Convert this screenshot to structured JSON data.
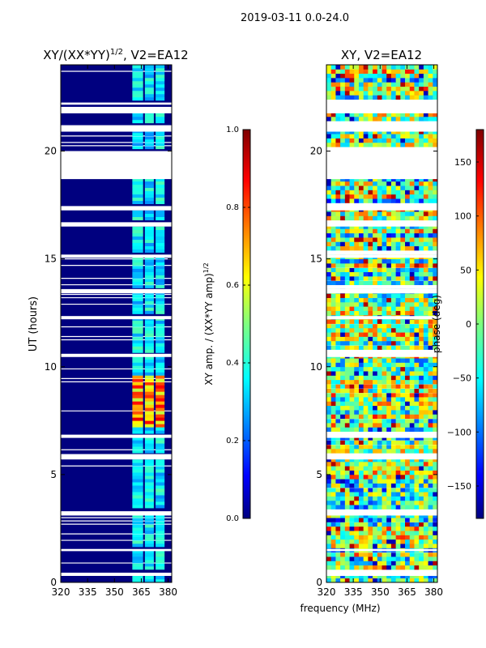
{
  "figure_title": "2019-03-11 0.0-24.0",
  "colors": {
    "dark_blue": "#00007f",
    "blue": "#0000ff",
    "cyan": "#00ffff",
    "yellow": "#ffff00",
    "red": "#ff0000",
    "dark_red": "#7f0000",
    "green": "#7fff7f"
  },
  "chart_data": [
    {
      "type": "heatmap",
      "title": "XY/(XX*YY)",
      "title_superscript": "1/2",
      "title_suffix": ", V2=EA12",
      "xlabel": "",
      "ylabel": "UT (hours)",
      "xlim": [
        320,
        382
      ],
      "ylim": [
        0,
        24
      ],
      "x_ticks": [
        320,
        335,
        350,
        365,
        380
      ],
      "y_ticks": [
        0,
        5,
        10,
        15,
        20
      ],
      "colorbar": {
        "label": "XY amp. / (XX*YY amp)",
        "label_superscript": "1/2",
        "range": [
          0.0,
          1.0
        ],
        "ticks": [
          "0.0",
          "0.2",
          "0.4",
          "0.6",
          "0.8",
          "1.0"
        ]
      },
      "bright_bands_mhz": [
        [
          360,
          366
        ],
        [
          367,
          372
        ],
        [
          373,
          378
        ]
      ],
      "high_amp_hours": [
        7.2,
        9.6
      ],
      "data_gaps_hours": [
        [
          0.3,
          0.45
        ],
        [
          1.45,
          1.55
        ],
        [
          3.1,
          3.3
        ],
        [
          5.7,
          5.95
        ],
        [
          6.7,
          6.85
        ],
        [
          10.45,
          10.6
        ],
        [
          12.2,
          12.35
        ],
        [
          13.4,
          13.6
        ],
        [
          15.05,
          15.2
        ],
        [
          16.5,
          16.7
        ],
        [
          17.25,
          17.45
        ],
        [
          18.7,
          20.0
        ],
        [
          20.9,
          21.2
        ],
        [
          21.75,
          22.05
        ],
        [
          22.15,
          22.25
        ]
      ]
    },
    {
      "type": "heatmap",
      "title": "XY, V2=EA12",
      "xlabel": "frequency (MHz)",
      "ylabel": "",
      "xlim": [
        320,
        382
      ],
      "ylim": [
        0,
        24
      ],
      "x_ticks": [
        320,
        335,
        350,
        365,
        380
      ],
      "y_ticks": [
        0,
        5,
        10,
        15,
        20
      ],
      "colorbar": {
        "label": "phase (deg)",
        "range": [
          -180,
          180
        ],
        "ticks": [
          "150",
          "100",
          "50",
          "0",
          "−50",
          "−100",
          "−150"
        ],
        "tick_values": [
          150,
          100,
          50,
          0,
          -50,
          -100,
          -150
        ]
      },
      "data_gaps_hours": [
        [
          0.3,
          0.45
        ],
        [
          1.45,
          1.55
        ],
        [
          3.1,
          3.3
        ],
        [
          5.7,
          5.95
        ],
        [
          6.7,
          6.85
        ],
        [
          10.45,
          10.6
        ],
        [
          12.2,
          12.35
        ],
        [
          13.4,
          13.6
        ],
        [
          15.05,
          15.2
        ],
        [
          16.5,
          16.7
        ],
        [
          17.25,
          17.45
        ],
        [
          18.7,
          20.0
        ],
        [
          20.9,
          21.2
        ],
        [
          21.75,
          22.05
        ],
        [
          22.15,
          22.25
        ]
      ]
    }
  ]
}
